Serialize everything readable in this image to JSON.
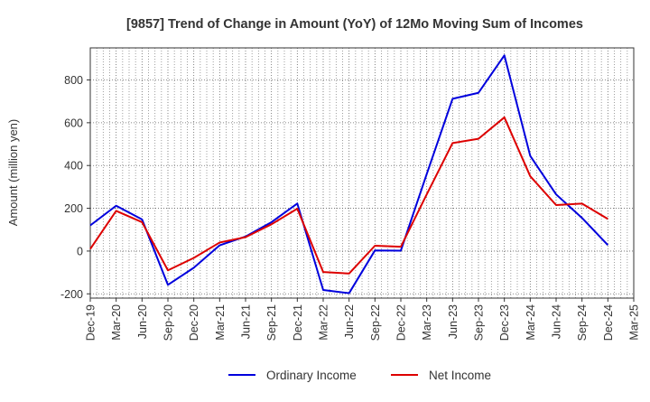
{
  "chart_data": {
    "type": "line",
    "title": "[9857]  Trend of Change in Amount (YoY) of 12Mo Moving Sum of Incomes",
    "xlabel": "",
    "ylabel": "Amount (million yen)",
    "categories": [
      "Dec-19",
      "Mar-20",
      "Jun-20",
      "Sep-20",
      "Dec-20",
      "Mar-21",
      "Jun-21",
      "Sep-21",
      "Dec-21",
      "Mar-22",
      "Jun-22",
      "Sep-22",
      "Dec-22",
      "Mar-23",
      "Jun-23",
      "Sep-23",
      "Dec-23",
      "Mar-24",
      "Jun-24",
      "Sep-24",
      "Dec-24",
      "Mar-25"
    ],
    "ylim": [
      -220,
      950
    ],
    "yticks": [
      -200,
      0,
      200,
      400,
      600,
      800
    ],
    "ytick_labels": [
      "-200",
      "0",
      "200",
      "400",
      "600",
      "800"
    ],
    "grid": true,
    "legend_position": "bottom",
    "series": [
      {
        "name": "Ordinary Income",
        "color": "#0000dd",
        "values": [
          120,
          212,
          148,
          -158,
          -78,
          27,
          68,
          135,
          222,
          -182,
          -197,
          3,
          2,
          360,
          712,
          740,
          915,
          445,
          265,
          155,
          28,
          null
        ]
      },
      {
        "name": "Net Income",
        "color": "#dd0000",
        "values": [
          10,
          188,
          135,
          -90,
          -32,
          40,
          65,
          125,
          198,
          -98,
          -105,
          25,
          20,
          265,
          505,
          525,
          625,
          350,
          215,
          222,
          150,
          null
        ]
      }
    ]
  }
}
